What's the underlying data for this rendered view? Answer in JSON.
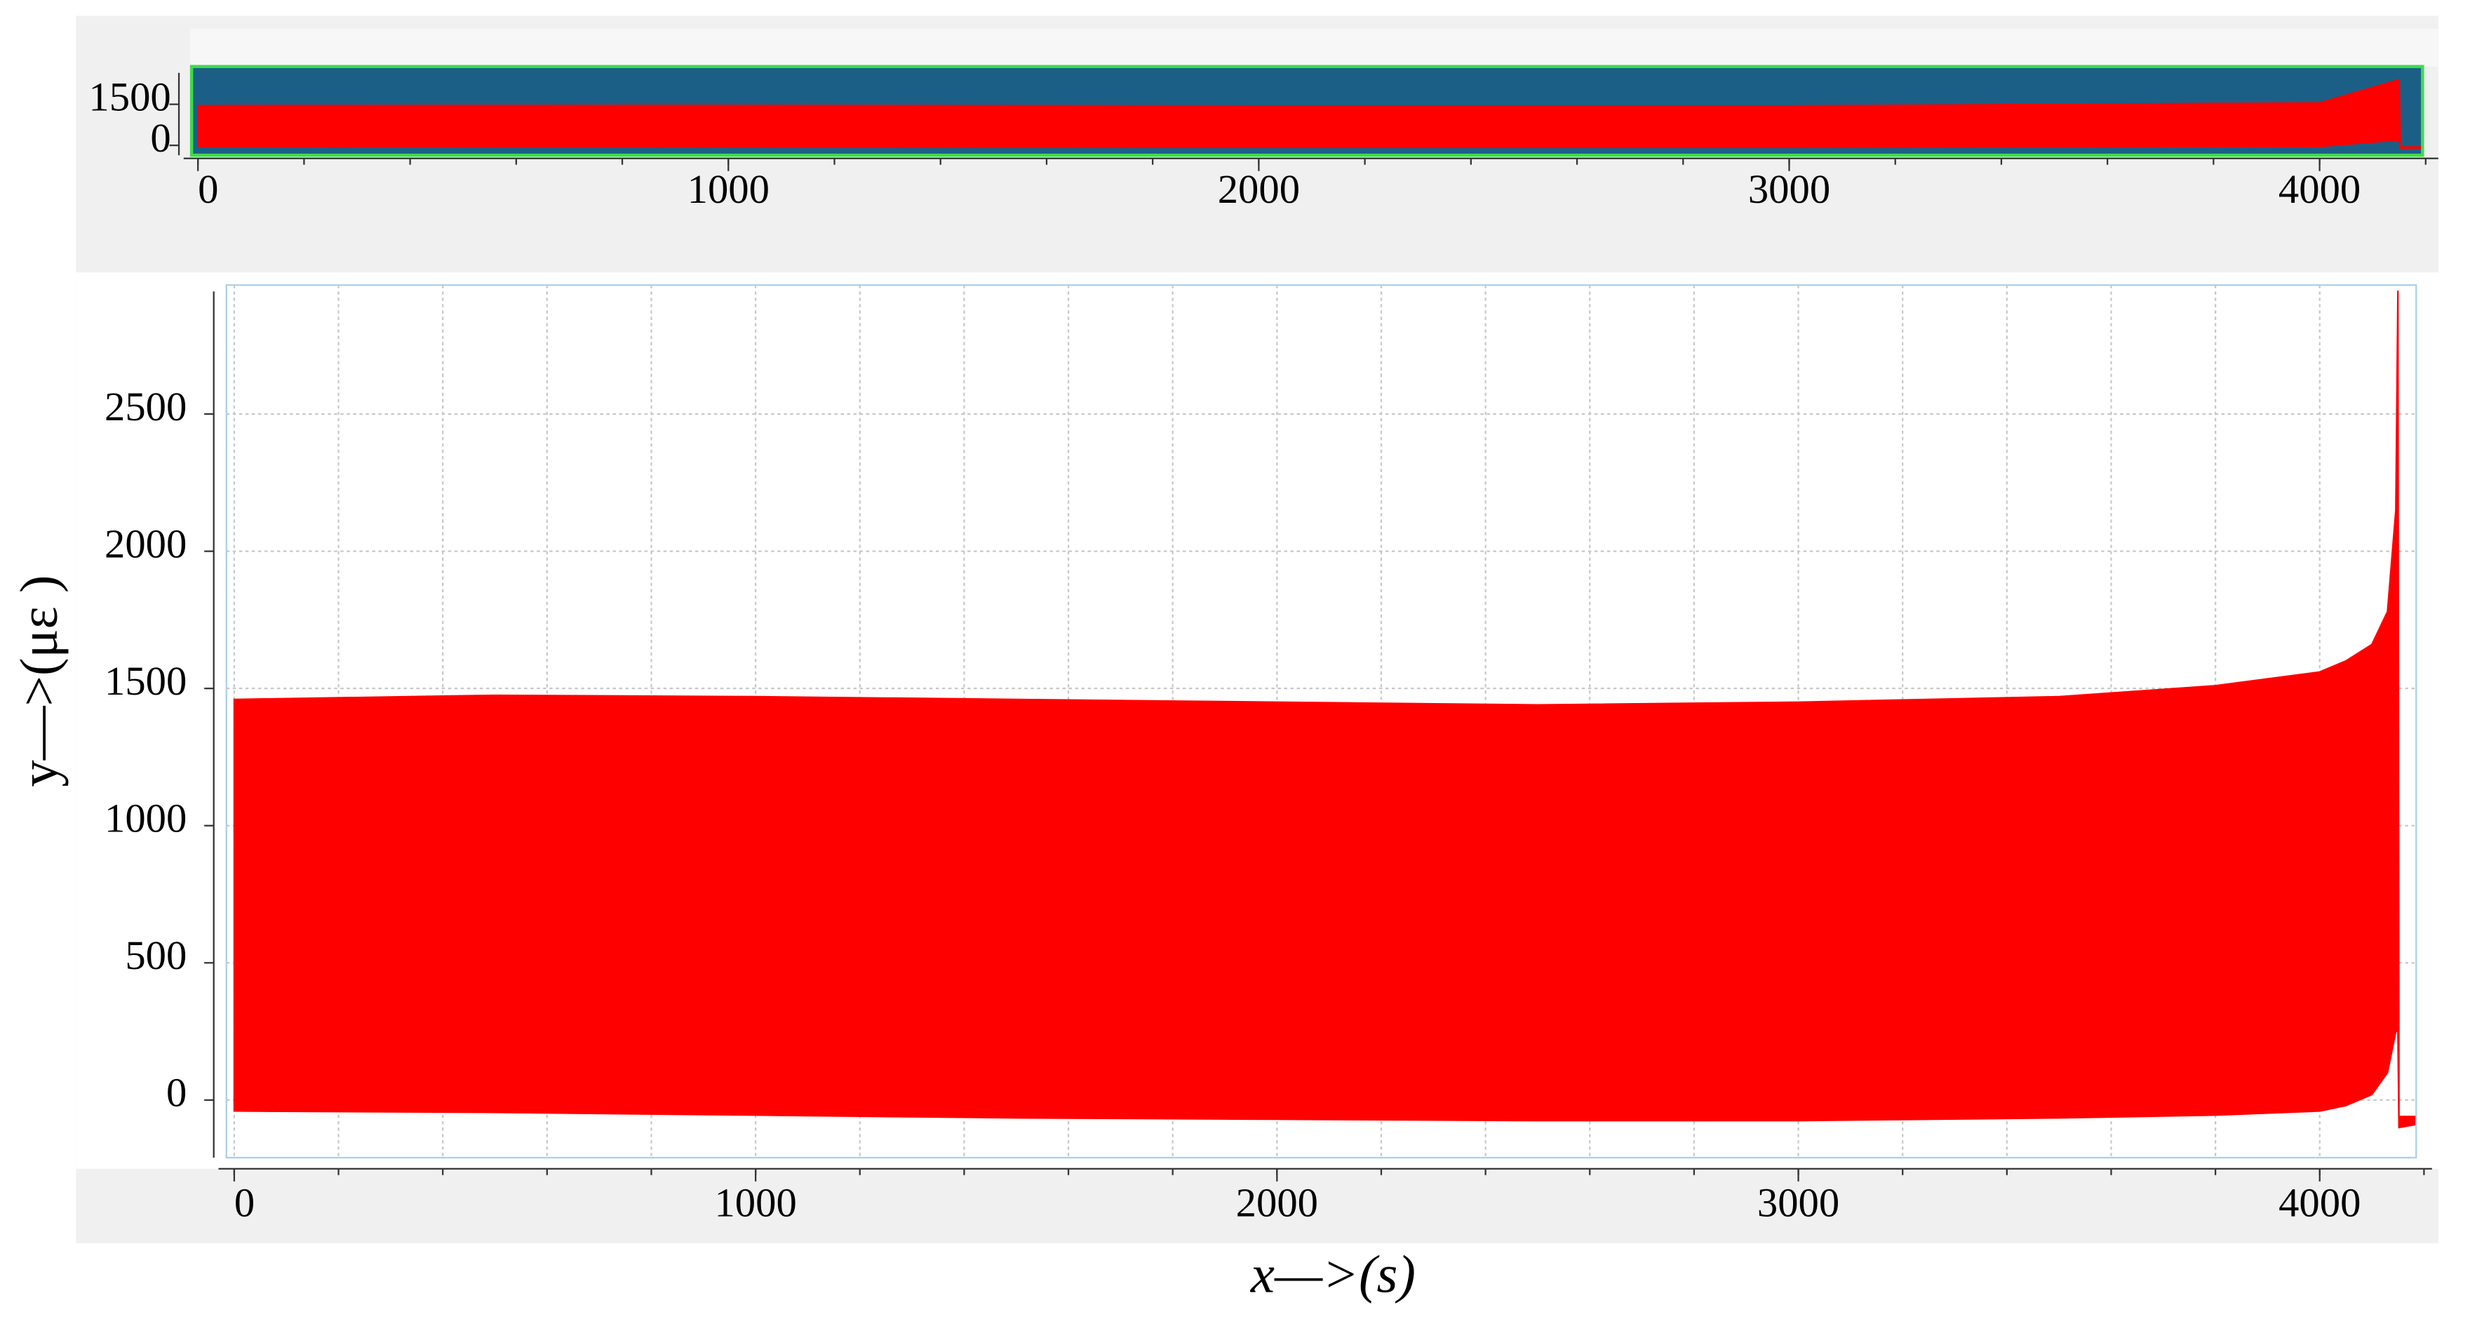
{
  "chart_data": [
    {
      "type": "band",
      "x": [
        0,
        1000,
        2000,
        3000,
        4000,
        4150,
        4152,
        4190
      ],
      "series": [
        {
          "color": "#ff0000",
          "values": [
            1450,
            1460,
            1440,
            1440,
            1550,
            2400,
            -60,
            -60
          ]
        },
        {
          "color": "#ff0000",
          "values": [
            -50,
            -60,
            -70,
            -70,
            -40,
            200,
            -100,
            -100
          ]
        }
      ],
      "xlim": [
        -12,
        4194
      ],
      "ylim": [
        -360,
        2880
      ],
      "xticks": [
        0,
        1000,
        2000,
        3000,
        4000
      ],
      "minor_xticks": [
        0,
        200,
        400,
        600,
        800,
        1000,
        1200,
        1400,
        1600,
        1800,
        2000,
        2200,
        2400,
        2600,
        2800,
        3000,
        3200,
        3400,
        3600,
        3800,
        4000,
        4200
      ],
      "yticks": [
        0,
        1500
      ],
      "background": "#1c5f86",
      "border_color": "#3ddc4a",
      "grid": false
    },
    {
      "type": "band",
      "x": [
        0,
        500,
        1000,
        1500,
        2000,
        2500,
        3000,
        3500,
        3800,
        4000,
        4050,
        4100,
        4130,
        4146,
        4150,
        4152,
        4182
      ],
      "series": [
        {
          "color": "#ff0000",
          "values": [
            1460,
            1475,
            1470,
            1460,
            1450,
            1440,
            1450,
            1470,
            1510,
            1560,
            1600,
            1660,
            1780,
            2150,
            2950,
            -60,
            -60
          ]
        },
        {
          "color": "#ff0000",
          "values": [
            -40,
            -45,
            -55,
            -65,
            -70,
            -75,
            -75,
            -65,
            -55,
            -40,
            -20,
            20,
            100,
            250,
            250,
            -100,
            -90
          ]
        }
      ],
      "xlim": [
        -15,
        4185
      ],
      "ylim": [
        -210,
        2970
      ],
      "xticks": [
        0,
        1000,
        2000,
        3000,
        4000
      ],
      "minor_xticks": [
        0,
        200,
        400,
        600,
        800,
        1000,
        1200,
        1400,
        1600,
        1800,
        2000,
        2200,
        2400,
        2600,
        2800,
        3000,
        3200,
        3400,
        3600,
        3800,
        4000,
        4200
      ],
      "yticks": [
        0,
        500,
        1000,
        1500,
        2000,
        2500
      ],
      "xlabel": "x—>(s)",
      "ylabel": "y—>(με )",
      "background": "#ffffff",
      "border_color": "#a9cfe9",
      "grid": true
    }
  ]
}
